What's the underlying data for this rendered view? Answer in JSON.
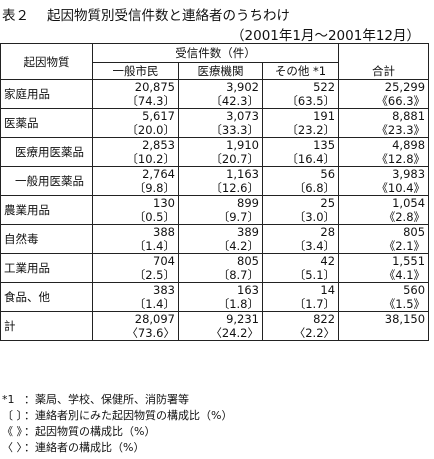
{
  "title": {
    "label": "表２",
    "text": "起因物質別受信件数と連絡者のうちわけ"
  },
  "period": "（2001年1月～2001年12月）",
  "header": {
    "row_label": "起因物質",
    "group": "受信件数（件）",
    "columns": [
      "一般市民",
      "医療機関",
      "その他 *1",
      "合計"
    ]
  },
  "rows": [
    {
      "label": "家庭用品",
      "sub": false,
      "values": [
        "20,875",
        "3,902",
        "522",
        "25,299"
      ],
      "ratios": [
        "〔74.3〕",
        "〔42.3〕",
        "〔63.5〕",
        "《66.3》"
      ]
    },
    {
      "label": "医薬品",
      "sub": false,
      "values": [
        "5,617",
        "3,073",
        "191",
        "8,881"
      ],
      "ratios": [
        "〔20.0〕",
        "〔33.3〕",
        "〔23.2〕",
        "《23.3》"
      ]
    },
    {
      "label": "医療用医薬品",
      "sub": true,
      "values": [
        "2,853",
        "1,910",
        "135",
        "4,898"
      ],
      "ratios": [
        "〔10.2〕",
        "〔20.7〕",
        "〔16.4〕",
        "《12.8》"
      ]
    },
    {
      "label": "一般用医薬品",
      "sub": true,
      "values": [
        "2,764",
        "1,163",
        "56",
        "3,983"
      ],
      "ratios": [
        "〔9.8〕",
        "〔12.6〕",
        "〔6.8〕",
        "《10.4》"
      ]
    },
    {
      "label": "農業用品",
      "sub": false,
      "values": [
        "130",
        "899",
        "25",
        "1,054"
      ],
      "ratios": [
        "〔0.5〕",
        "〔9.7〕",
        "〔3.0〕",
        "《2.8》"
      ]
    },
    {
      "label": "自然毒",
      "sub": false,
      "values": [
        "388",
        "389",
        "28",
        "805"
      ],
      "ratios": [
        "〔1.4〕",
        "〔4.2〕",
        "〔3.4〕",
        "《2.1》"
      ]
    },
    {
      "label": "工業用品",
      "sub": false,
      "values": [
        "704",
        "805",
        "42",
        "1,551"
      ],
      "ratios": [
        "〔2.5〕",
        "〔8.7〕",
        "〔5.1〕",
        "《4.1》"
      ]
    },
    {
      "label": "食品、他",
      "sub": false,
      "values": [
        "383",
        "163",
        "14",
        "560"
      ],
      "ratios": [
        "〔1.4〕",
        "〔1.8〕",
        "〔1.7〕",
        "《1.5》"
      ]
    },
    {
      "label": "計",
      "sub": false,
      "values": [
        "28,097",
        "9,231",
        "822",
        "38,150"
      ],
      "ratios": [
        "〈73.6〉",
        "〈24.2〉",
        "〈2.2〉",
        ""
      ]
    }
  ],
  "notes": [
    {
      "sym": "*1",
      "text": "：薬局、学校、保健所、消防署等"
    },
    {
      "sym": "〔 〕",
      "text": "：連絡者別にみた起因物質の構成比（%）"
    },
    {
      "sym": "《 》",
      "text": "：起因物質の構成比（%）"
    },
    {
      "sym": "〈 〉",
      "text": "：連絡者の構成比（%）"
    }
  ]
}
